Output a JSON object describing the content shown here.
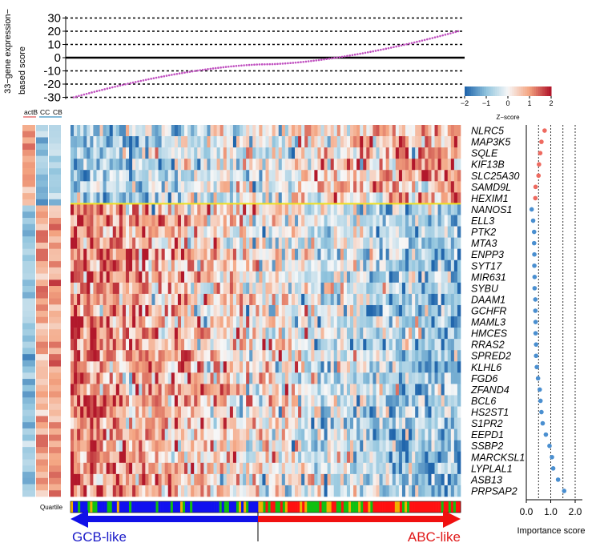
{
  "chart_data": [
    {
      "type": "scatter",
      "ylabel_lines": [
        "33−gene expression−",
        "based score"
      ],
      "ylim": [
        -32,
        32
      ],
      "yticks": [
        30,
        20,
        10,
        0,
        -10,
        -20,
        -30
      ],
      "point_count": 150,
      "score_range": [
        -30,
        20
      ],
      "color": "#c050c0"
    },
    {
      "type": "heatmap",
      "annotation_labels": [
        "actB",
        "CC",
        "CB"
      ],
      "annotation_underline_colors": [
        "#e05050",
        "#3a8fc0",
        "#3a8fc0"
      ],
      "colorbar": {
        "title": "Z−score",
        "ticks": [
          -2,
          -1,
          0,
          1,
          2
        ]
      },
      "genes": [
        "NLRC5",
        "MAP3K5",
        "SQLE",
        "KIF13B",
        "SLC25A30",
        "SAMD9L",
        "HEXIM1",
        "NANOS1",
        "ELL3",
        "PTK2",
        "MTA3",
        "ENPP3",
        "SYT17",
        "MIR631",
        "SYBU",
        "DAAM1",
        "GCHFR",
        "MAML3",
        "HMCES",
        "RRAS2",
        "SPRED2",
        "KLHL6",
        "FGD6",
        "ZFAND4",
        "BCL6",
        "HS2ST1",
        "S1PR2",
        "EEPD1",
        "SSBP2",
        "MARCKSL1",
        "LYPLAL1",
        "ASB13",
        "PRPSAP2"
      ],
      "abc_gene_count": 7,
      "separator_color": "#f0e020",
      "quartile_label": "Quartile",
      "quartile_colors": [
        "#1010f0",
        "#10c010",
        "#ff1010",
        "#f0b000"
      ],
      "arrows": {
        "left_label": "GCB-like",
        "right_label": "ABC-like",
        "left_color": "#1010e8",
        "right_color": "#f01010"
      }
    },
    {
      "type": "scatter",
      "xlabel": "Importance score",
      "xticks": [
        "0.0",
        "1.0",
        "2.0"
      ],
      "xlim": [
        0,
        2.2
      ],
      "dashed_lines_at": [
        0.5,
        1.0,
        1.5,
        2.0
      ],
      "values": [
        0.75,
        0.62,
        0.57,
        0.52,
        0.5,
        0.38,
        0.37,
        0.22,
        0.28,
        0.32,
        0.32,
        0.33,
        0.33,
        0.34,
        0.34,
        0.37,
        0.37,
        0.38,
        0.38,
        0.4,
        0.4,
        0.43,
        0.48,
        0.55,
        0.58,
        0.62,
        0.67,
        0.8,
        0.95,
        1.05,
        1.1,
        1.3,
        1.55
      ],
      "colors": {
        "abc": "#ee6a60",
        "gcb": "#4a8fd0"
      }
    }
  ]
}
